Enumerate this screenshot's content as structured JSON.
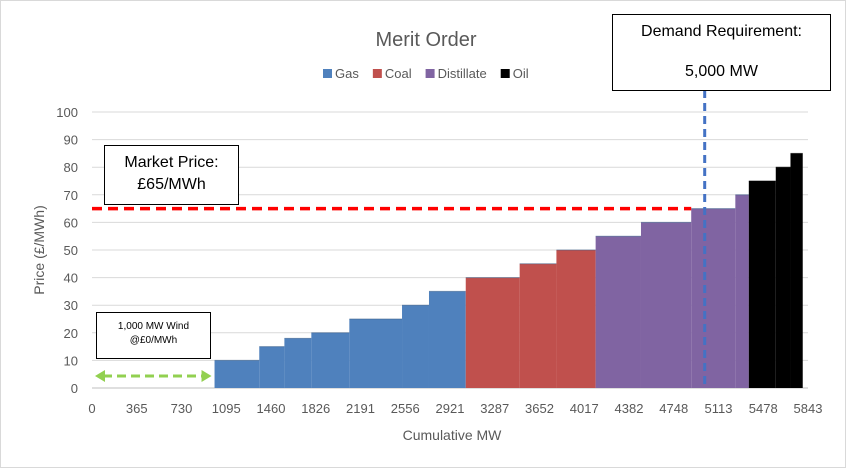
{
  "chart_data": {
    "type": "bar",
    "title": "Merit Order",
    "xlabel": "Cumulative MW",
    "ylabel": "Price  (£/MWh)",
    "xlim": [
      0,
      5843
    ],
    "ylim": [
      0,
      100
    ],
    "x_tick_labels": [
      "0",
      "365",
      "730",
      "1095",
      "1460",
      "1826",
      "2191",
      "2556",
      "2921",
      "3287",
      "3652",
      "4017",
      "4382",
      "4748",
      "5113",
      "5478",
      "5843"
    ],
    "y_ticks": [
      0,
      10,
      20,
      30,
      40,
      50,
      60,
      70,
      80,
      90,
      100
    ],
    "grid": "horizontal",
    "legend": "top",
    "series": [
      {
        "name": "Gas",
        "color": "#4f81bd",
        "steps": [
          {
            "x_start": 1000,
            "x_end": 1365,
            "value": 10
          },
          {
            "x_start": 1365,
            "x_end": 1570,
            "value": 15
          },
          {
            "x_start": 1570,
            "x_end": 1790,
            "value": 18
          },
          {
            "x_start": 1790,
            "x_end": 2100,
            "value": 20
          },
          {
            "x_start": 2100,
            "x_end": 2530,
            "value": 25
          },
          {
            "x_start": 2530,
            "x_end": 2750,
            "value": 30
          },
          {
            "x_start": 2750,
            "x_end": 3050,
            "value": 35
          }
        ]
      },
      {
        "name": "Coal",
        "color": "#c0504d",
        "steps": [
          {
            "x_start": 3050,
            "x_end": 3490,
            "value": 40
          },
          {
            "x_start": 3490,
            "x_end": 3790,
            "value": 45
          },
          {
            "x_start": 3790,
            "x_end": 4110,
            "value": 50
          }
        ]
      },
      {
        "name": "Distillate",
        "color": "#8064a2",
        "steps": [
          {
            "x_start": 4110,
            "x_end": 4480,
            "value": 55
          },
          {
            "x_start": 4480,
            "x_end": 4890,
            "value": 60
          },
          {
            "x_start": 4890,
            "x_end": 5250,
            "value": 65
          },
          {
            "x_start": 5250,
            "x_end": 5360,
            "value": 70
          }
        ]
      },
      {
        "name": "Oil",
        "color": "#000000",
        "steps": [
          {
            "x_start": 5360,
            "x_end": 5580,
            "value": 75
          },
          {
            "x_start": 5580,
            "x_end": 5700,
            "value": 80
          },
          {
            "x_start": 5700,
            "x_end": 5800,
            "value": 85
          }
        ]
      }
    ],
    "reference_lines": [
      {
        "orientation": "horizontal",
        "value": 65,
        "color": "#ff0000",
        "style": "dashed"
      },
      {
        "orientation": "vertical",
        "value": 5000,
        "color": "#4472c4",
        "style": "dashed"
      }
    ],
    "wind_arrow": {
      "x_start": 0,
      "x_end": 1000,
      "value": 5,
      "color": "#92d050"
    }
  },
  "annotations": {
    "demand_line1": "Demand Requirement:",
    "demand_line2": "5,000 MW",
    "price_line1": "Market Price:",
    "price_line2": "£65/MWh",
    "wind_line1": "1,000 MW Wind",
    "wind_line2": "@£0/MWh"
  }
}
